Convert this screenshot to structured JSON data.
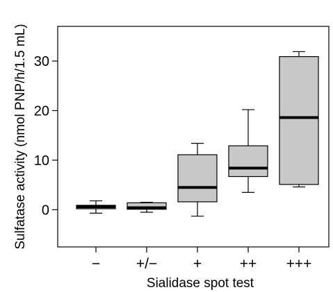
{
  "chart_data": {
    "type": "box",
    "xlabel": "Sialidase spot test",
    "ylabel": "Sulfatase activity (nmol PNP/h/1.5 mL)",
    "ylim": [
      -7.5,
      37
    ],
    "yticks": [
      0,
      10,
      20,
      30
    ],
    "grid": false,
    "categories": [
      "−",
      "+/−",
      "+",
      "++",
      "+++"
    ],
    "boxes": [
      {
        "category": "−",
        "min": -0.7,
        "q1": 0.2,
        "median": 0.6,
        "q3": 0.9,
        "max": 1.8
      },
      {
        "category": "+/−",
        "min": -0.5,
        "q1": 0.1,
        "median": 0.4,
        "q3": 1.4,
        "max": 1.5
      },
      {
        "category": "+",
        "min": -1.3,
        "q1": 1.6,
        "median": 4.5,
        "q3": 11.1,
        "max": 13.4
      },
      {
        "category": "++",
        "min": 3.5,
        "q1": 6.7,
        "median": 8.4,
        "q3": 12.9,
        "max": 20.2
      },
      {
        "category": "+++",
        "min": 4.6,
        "q1": 5.1,
        "median": 18.6,
        "q3": 30.9,
        "max": 31.9
      }
    ],
    "colors": {
      "box_fill": "#c8c8c8",
      "stroke": "#000000"
    }
  }
}
